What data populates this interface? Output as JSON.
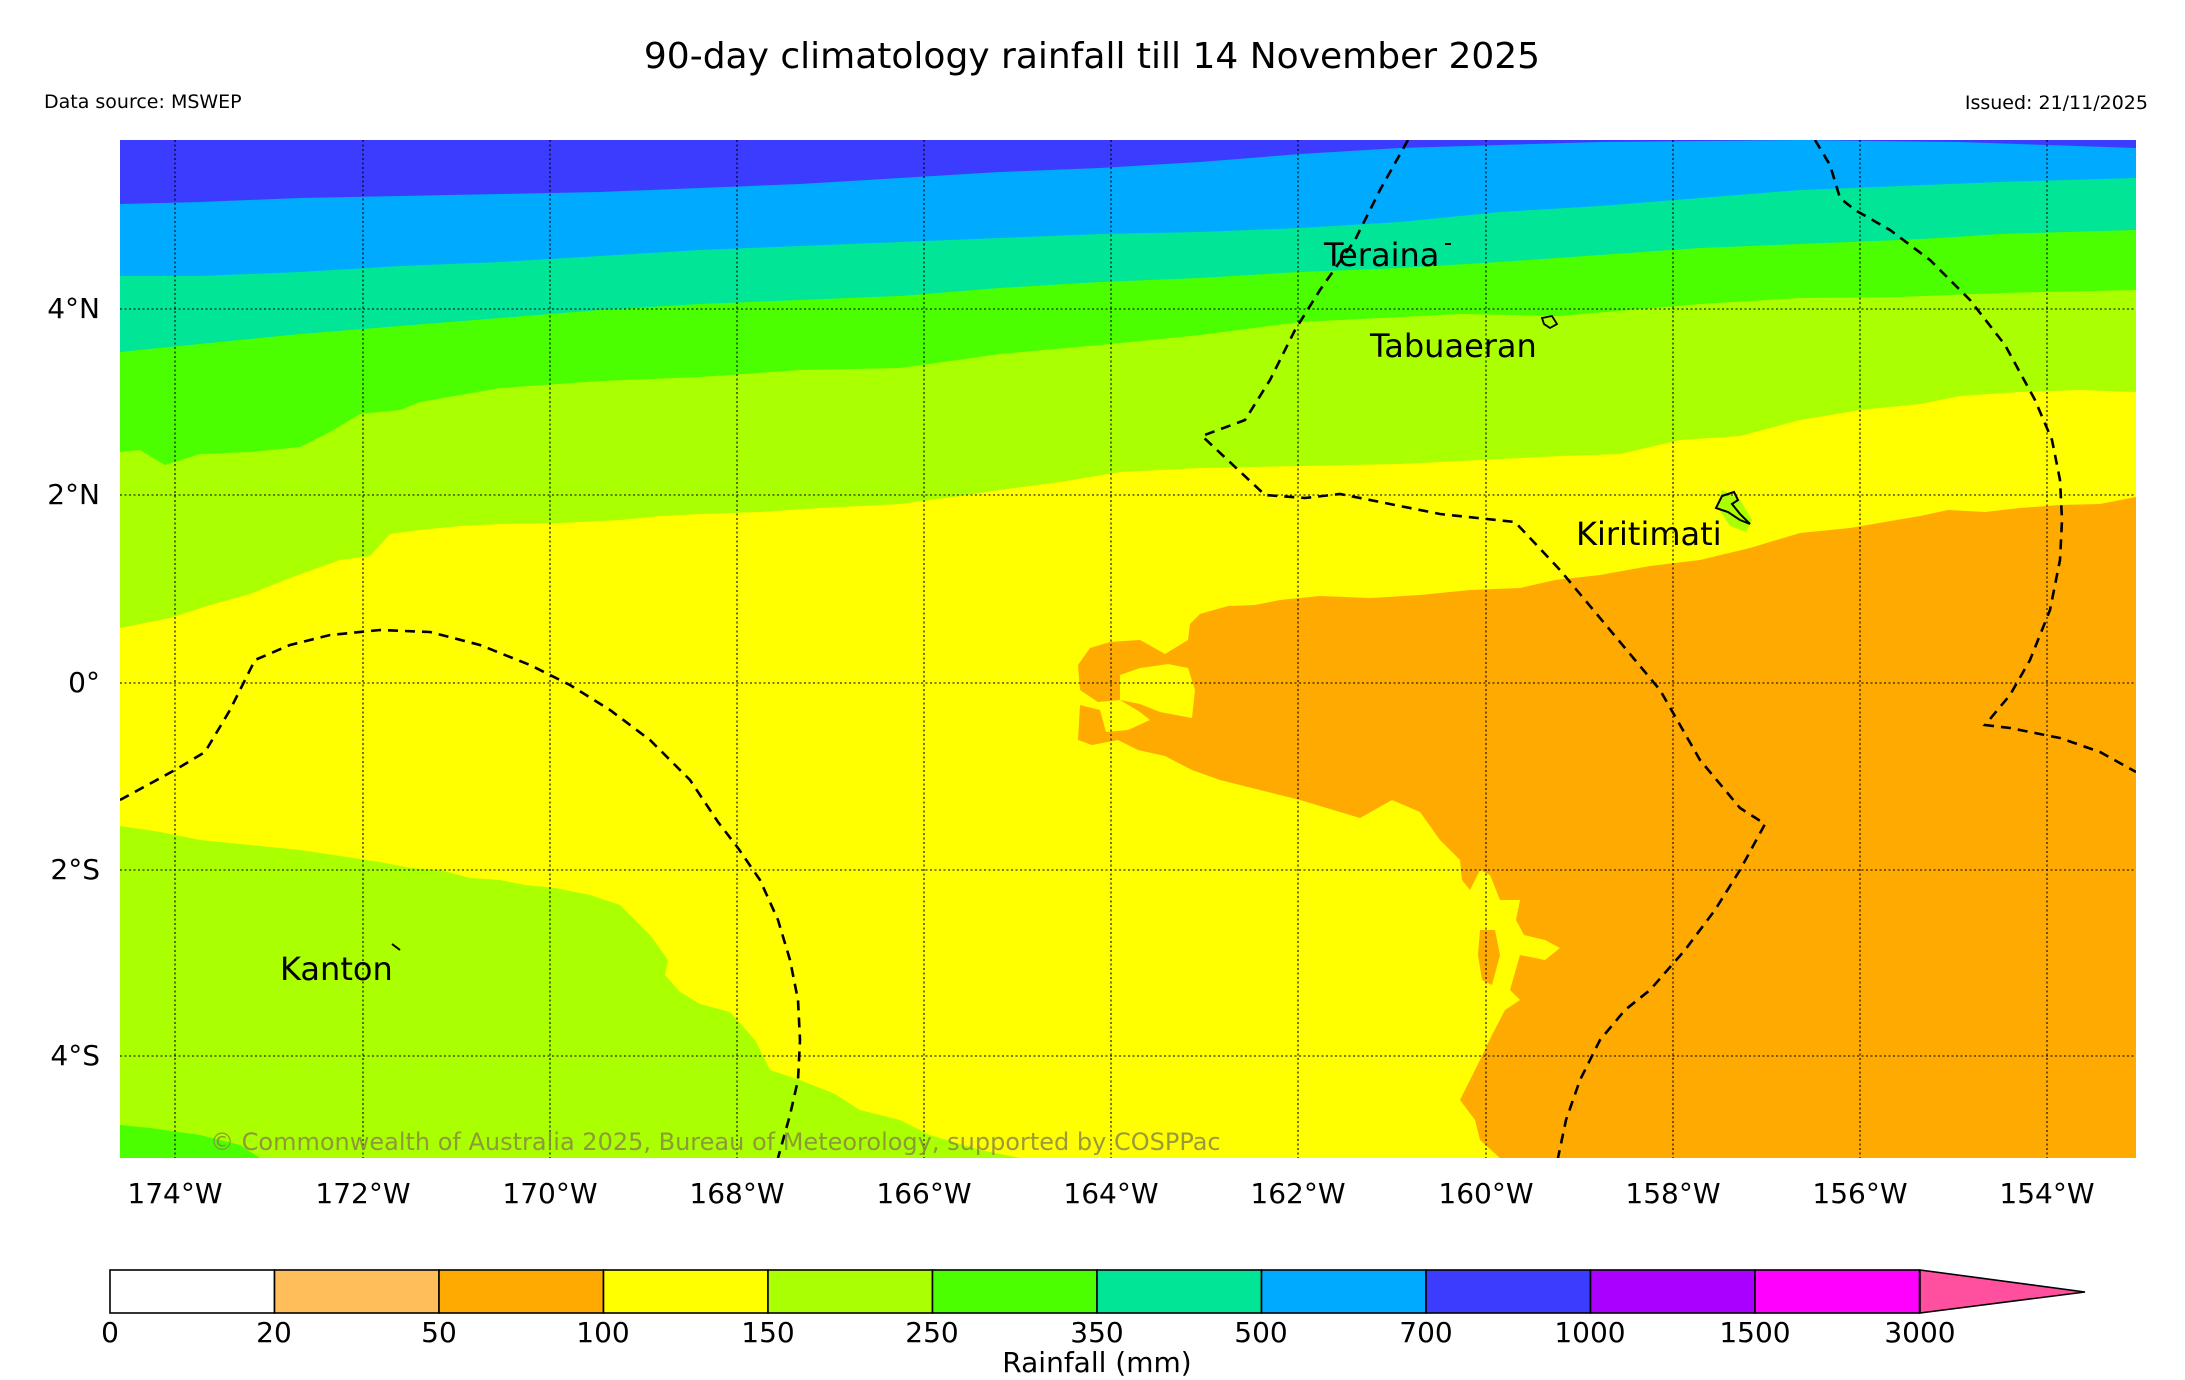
{
  "header": {
    "title": "90-day climatology rainfall till 14 November 2025",
    "data_source": "Data source: MSWEP",
    "issued": "Issued: 21/11/2025"
  },
  "map": {
    "lat_labels": [
      "4°N",
      "2°N",
      "0°",
      "2°S",
      "4°S"
    ],
    "lon_labels": [
      "174°W",
      "172°W",
      "170°W",
      "168°W",
      "166°W",
      "164°W",
      "162°W",
      "160°W",
      "158°W",
      "156°W",
      "154°W"
    ],
    "places": {
      "teraina": "Teraina",
      "tabuaeran": "Tabuaeran",
      "kiritimati": "Kiritimati",
      "kanton": "Kanton"
    },
    "copyright": "© Commonwealth of Australia 2025, Bureau of Meteorology, supported by COSPPac"
  },
  "colorbar": {
    "label": "Rainfall (mm)",
    "ticks": [
      "0",
      "20",
      "50",
      "100",
      "150",
      "250",
      "350",
      "500",
      "700",
      "1000",
      "1500",
      "3000"
    ],
    "colors": [
      "#ffffff",
      "#ffbe5a",
      "#ffaa00",
      "#ffff00",
      "#aaff00",
      "#4bff00",
      "#00e696",
      "#00aaff",
      "#3c3cff",
      "#aa00ff",
      "#ff00ff",
      "#ff50a0"
    ]
  }
}
